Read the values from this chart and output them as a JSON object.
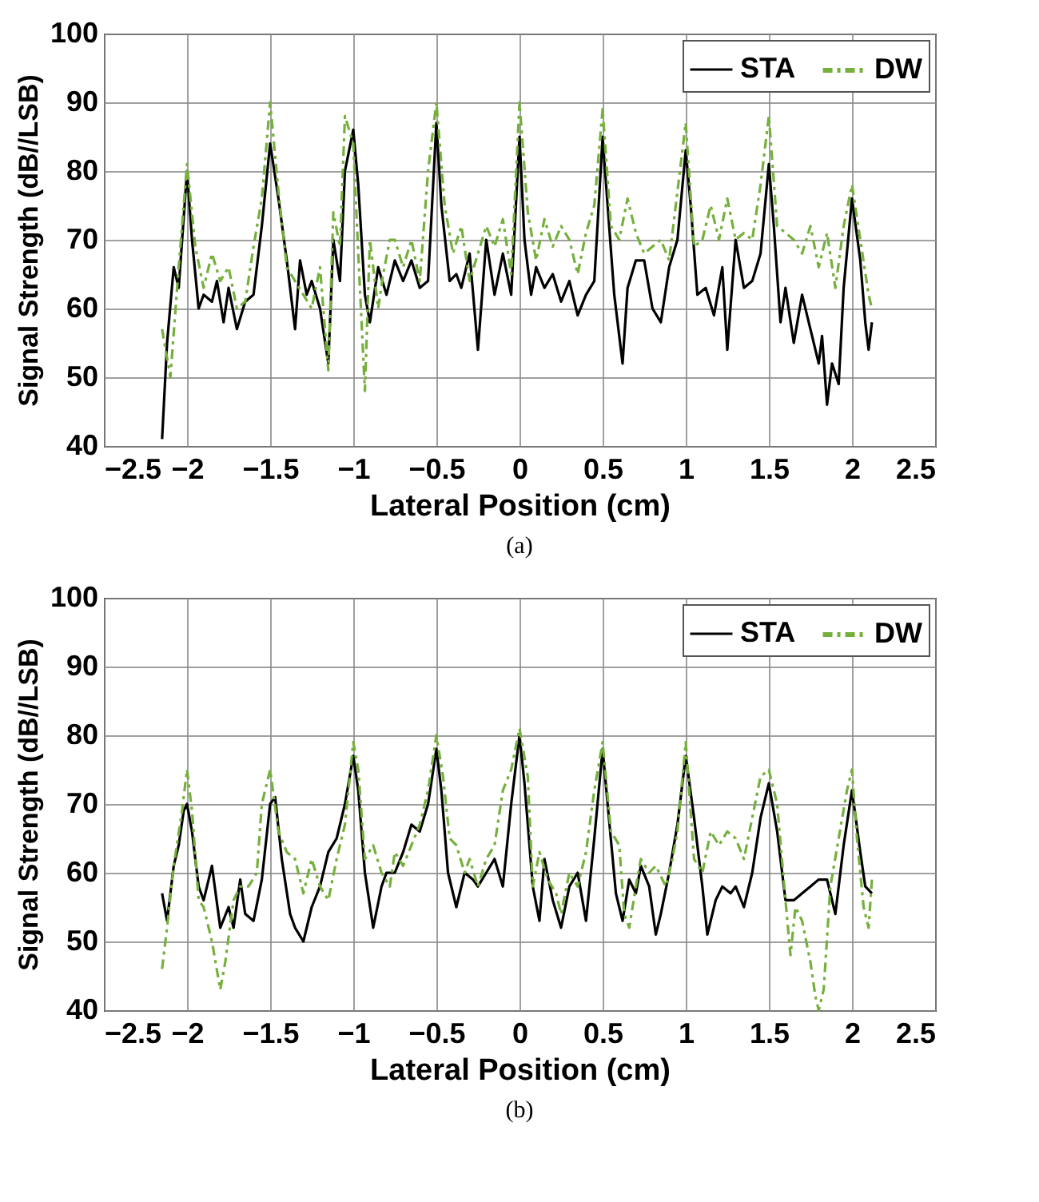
{
  "chart_data": [
    {
      "type": "line",
      "xlabel": "Lateral Position (cm)",
      "ylabel": "Signal Strength (dB//LSB)",
      "annotations": [
        "(a)"
      ],
      "xlim": [
        -2.5,
        2.5
      ],
      "ylim": [
        40,
        100
      ],
      "xticks": [
        -2.5,
        -2,
        -1.5,
        -1,
        -0.5,
        0,
        0.5,
        1,
        1.5,
        2,
        2.5
      ],
      "yticks": [
        40,
        50,
        60,
        70,
        80,
        90,
        100
      ],
      "grid": true,
      "legend": "top right",
      "series": [
        {
          "name": "STA",
          "color": "#000000",
          "line_style": "solid",
          "x": [
            -2.15,
            -2.12,
            -2.08,
            -2.05,
            -2.0,
            -1.97,
            -1.93,
            -1.9,
            -1.85,
            -1.82,
            -1.78,
            -1.75,
            -1.7,
            -1.65,
            -1.6,
            -1.55,
            -1.5,
            -1.45,
            -1.4,
            -1.35,
            -1.32,
            -1.28,
            -1.25,
            -1.2,
            -1.15,
            -1.12,
            -1.08,
            -1.05,
            -1.0,
            -0.97,
            -0.93,
            -0.9,
            -0.85,
            -0.8,
            -0.75,
            -0.7,
            -0.65,
            -0.6,
            -0.55,
            -0.5,
            -0.47,
            -0.42,
            -0.38,
            -0.35,
            -0.3,
            -0.25,
            -0.2,
            -0.15,
            -0.1,
            -0.05,
            0.0,
            0.03,
            0.07,
            0.1,
            0.15,
            0.2,
            0.25,
            0.3,
            0.35,
            0.4,
            0.45,
            0.5,
            0.53,
            0.57,
            0.62,
            0.65,
            0.7,
            0.75,
            0.8,
            0.85,
            0.9,
            0.95,
            1.0,
            1.03,
            1.07,
            1.12,
            1.17,
            1.22,
            1.25,
            1.3,
            1.35,
            1.4,
            1.45,
            1.5,
            1.53,
            1.57,
            1.6,
            1.65,
            1.7,
            1.75,
            1.8,
            1.82,
            1.85,
            1.88,
            1.92,
            1.95,
            2.0,
            2.05,
            2.08,
            2.1,
            2.12
          ],
          "values": [
            41,
            55,
            66,
            63,
            80,
            70,
            60,
            62,
            61,
            64,
            58,
            63,
            57,
            61,
            62,
            72,
            84,
            76,
            67,
            57,
            67,
            62,
            64,
            60,
            52,
            70,
            64,
            80,
            86,
            78,
            62,
            58,
            66,
            62,
            67,
            64,
            67,
            63,
            64,
            87,
            75,
            64,
            65,
            63,
            68,
            54,
            70,
            62,
            68,
            62,
            85,
            70,
            62,
            66,
            63,
            65,
            61,
            64,
            59,
            62,
            64,
            85,
            75,
            62,
            52,
            63,
            67,
            67,
            60,
            58,
            66,
            70,
            83,
            75,
            62,
            63,
            59,
            66,
            54,
            70,
            63,
            64,
            68,
            81,
            72,
            58,
            63,
            55,
            62,
            57,
            52,
            56,
            46,
            52,
            49,
            63,
            76,
            67,
            58,
            54,
            58
          ]
        },
        {
          "name": "DW",
          "color": "#76b03c",
          "line_style": "dashed",
          "x": [
            -2.15,
            -2.1,
            -2.05,
            -2.0,
            -1.95,
            -1.9,
            -1.85,
            -1.8,
            -1.75,
            -1.7,
            -1.65,
            -1.6,
            -1.55,
            -1.5,
            -1.45,
            -1.4,
            -1.35,
            -1.3,
            -1.25,
            -1.2,
            -1.15,
            -1.12,
            -1.08,
            -1.05,
            -1.0,
            -0.97,
            -0.93,
            -0.9,
            -0.85,
            -0.82,
            -0.78,
            -0.75,
            -0.7,
            -0.65,
            -0.6,
            -0.55,
            -0.5,
            -0.45,
            -0.4,
            -0.35,
            -0.3,
            -0.25,
            -0.2,
            -0.15,
            -0.1,
            -0.05,
            0.0,
            0.05,
            0.1,
            0.15,
            0.2,
            0.25,
            0.3,
            0.35,
            0.4,
            0.45,
            0.5,
            0.55,
            0.6,
            0.65,
            0.7,
            0.75,
            0.8,
            0.85,
            0.9,
            0.95,
            1.0,
            1.05,
            1.1,
            1.15,
            1.2,
            1.25,
            1.3,
            1.35,
            1.4,
            1.45,
            1.5,
            1.55,
            1.6,
            1.65,
            1.7,
            1.75,
            1.8,
            1.85,
            1.9,
            1.95,
            2.0,
            2.05,
            2.1,
            2.12
          ],
          "values": [
            57,
            50,
            66,
            81,
            69,
            63,
            68,
            64,
            66,
            60,
            61,
            69,
            76,
            90,
            77,
            66,
            64,
            62,
            60,
            66,
            51,
            74,
            69,
            88,
            84,
            68,
            48,
            70,
            60,
            65,
            70,
            70,
            66,
            70,
            64,
            80,
            90,
            75,
            68,
            72,
            64,
            68,
            72,
            69,
            73,
            65,
            90,
            74,
            67,
            73,
            69,
            72,
            70,
            65,
            71,
            75,
            89,
            72,
            70,
            76,
            71,
            68,
            69,
            70,
            67,
            77,
            87,
            69,
            70,
            75,
            70,
            76,
            70,
            71,
            70,
            78,
            88,
            72,
            71,
            70,
            68,
            72,
            66,
            71,
            63,
            72,
            78,
            70,
            62,
            60
          ]
        }
      ]
    },
    {
      "type": "line",
      "xlabel": "Lateral Position (cm)",
      "ylabel": "Signal Strength (dB//LSB)",
      "annotations": [
        "(b)"
      ],
      "xlim": [
        -2.5,
        2.5
      ],
      "ylim": [
        40,
        100
      ],
      "xticks": [
        -2.5,
        -2,
        -1.5,
        -1,
        -0.5,
        0,
        0.5,
        1,
        1.5,
        2,
        2.5
      ],
      "yticks": [
        40,
        50,
        60,
        70,
        80,
        90,
        100
      ],
      "grid": true,
      "legend": "top right",
      "series": [
        {
          "name": "STA",
          "color": "#000000",
          "line_style": "solid",
          "x": [
            -2.15,
            -2.12,
            -2.08,
            -2.05,
            -2.02,
            -2.0,
            -1.97,
            -1.93,
            -1.9,
            -1.85,
            -1.8,
            -1.75,
            -1.72,
            -1.68,
            -1.65,
            -1.6,
            -1.55,
            -1.5,
            -1.47,
            -1.43,
            -1.38,
            -1.35,
            -1.3,
            -1.25,
            -1.2,
            -1.15,
            -1.1,
            -1.05,
            -1.0,
            -0.97,
            -0.93,
            -0.88,
            -0.83,
            -0.8,
            -0.75,
            -0.7,
            -0.65,
            -0.6,
            -0.55,
            -0.5,
            -0.47,
            -0.43,
            -0.38,
            -0.33,
            -0.28,
            -0.25,
            -0.2,
            -0.15,
            -0.1,
            -0.05,
            0.0,
            0.03,
            0.08,
            0.12,
            0.15,
            0.2,
            0.25,
            0.3,
            0.35,
            0.4,
            0.45,
            0.5,
            0.53,
            0.58,
            0.62,
            0.66,
            0.7,
            0.73,
            0.78,
            0.82,
            0.85,
            0.9,
            0.95,
            1.0,
            1.05,
            1.1,
            1.13,
            1.18,
            1.22,
            1.27,
            1.3,
            1.35,
            1.4,
            1.45,
            1.5,
            1.55,
            1.6,
            1.65,
            1.7,
            1.75,
            1.8,
            1.85,
            1.9,
            1.95,
            2.0,
            2.05,
            2.08,
            2.12
          ],
          "values": [
            57,
            53,
            61,
            64,
            69,
            70,
            66,
            58,
            56,
            61,
            52,
            55,
            52,
            59,
            54,
            53,
            59,
            70,
            71,
            62,
            54,
            52,
            50,
            55,
            58,
            63,
            65,
            70,
            77,
            72,
            60,
            52,
            58,
            60,
            60,
            63,
            67,
            66,
            70,
            78,
            72,
            60,
            55,
            60,
            59,
            58,
            60,
            62,
            58,
            70,
            80,
            73,
            58,
            53,
            62,
            56,
            52,
            58,
            60,
            53,
            65,
            78,
            70,
            57,
            53,
            59,
            57,
            61,
            58,
            51,
            54,
            60,
            67,
            77,
            68,
            58,
            51,
            56,
            58,
            57,
            58,
            55,
            60,
            68,
            73,
            66,
            56,
            56,
            57,
            58,
            59,
            59,
            54,
            64,
            72,
            63,
            58,
            57
          ]
        },
        {
          "name": "DW",
          "color": "#76b03c",
          "line_style": "dashed",
          "x": [
            -2.15,
            -2.12,
            -2.08,
            -2.03,
            -2.0,
            -1.97,
            -1.93,
            -1.9,
            -1.85,
            -1.8,
            -1.77,
            -1.72,
            -1.68,
            -1.63,
            -1.58,
            -1.55,
            -1.5,
            -1.45,
            -1.4,
            -1.35,
            -1.3,
            -1.25,
            -1.2,
            -1.15,
            -1.1,
            -1.05,
            -1.0,
            -0.97,
            -0.93,
            -0.88,
            -0.83,
            -0.78,
            -0.75,
            -0.7,
            -0.65,
            -0.6,
            -0.55,
            -0.5,
            -0.46,
            -0.42,
            -0.38,
            -0.33,
            -0.3,
            -0.25,
            -0.2,
            -0.15,
            -0.1,
            -0.05,
            0.0,
            0.05,
            0.08,
            0.12,
            0.17,
            0.22,
            0.25,
            0.3,
            0.35,
            0.4,
            0.45,
            0.5,
            0.55,
            0.6,
            0.63,
            0.66,
            0.7,
            0.73,
            0.78,
            0.82,
            0.88,
            0.92,
            0.95,
            1.0,
            1.05,
            1.1,
            1.15,
            1.2,
            1.25,
            1.3,
            1.35,
            1.4,
            1.45,
            1.5,
            1.55,
            1.6,
            1.63,
            1.66,
            1.7,
            1.75,
            1.78,
            1.8,
            1.83,
            1.87,
            1.92,
            1.97,
            2.0,
            2.03,
            2.07,
            2.1,
            2.12
          ],
          "values": [
            46,
            52,
            61,
            69,
            75,
            69,
            56,
            55,
            50,
            43,
            47,
            56,
            58,
            58,
            60,
            70,
            75,
            66,
            63,
            62,
            57,
            62,
            58,
            56,
            62,
            67,
            79,
            75,
            62,
            64,
            60,
            58,
            63,
            61,
            64,
            67,
            72,
            80,
            74,
            65,
            64,
            60,
            62,
            58,
            62,
            64,
            72,
            75,
            81,
            74,
            58,
            63,
            59,
            57,
            54,
            60,
            58,
            63,
            72,
            79,
            66,
            64,
            54,
            52,
            58,
            62,
            60,
            61,
            58,
            62,
            66,
            79,
            62,
            60,
            66,
            64,
            66,
            65,
            62,
            68,
            74,
            75,
            70,
            56,
            48,
            55,
            53,
            47,
            42,
            40,
            43,
            58,
            65,
            72,
            75,
            65,
            55,
            52,
            59
          ]
        }
      ]
    }
  ]
}
